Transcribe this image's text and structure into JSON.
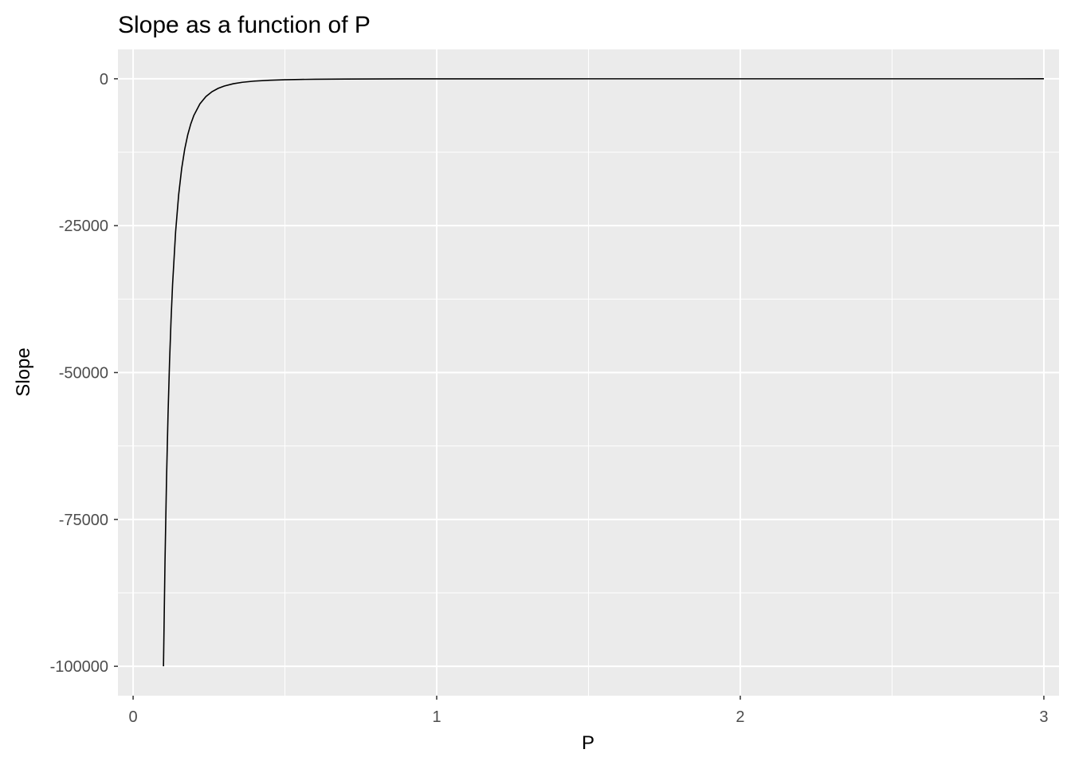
{
  "chart_data": {
    "type": "line",
    "title": "Slope as a function of P",
    "xlabel": "P",
    "ylabel": "Slope",
    "xlim": [
      -0.05,
      3.05
    ],
    "ylim": [
      -105000,
      5000
    ],
    "x_ticks": [
      0,
      1,
      2,
      3
    ],
    "x_tick_labels": [
      "0",
      "1",
      "2",
      "3"
    ],
    "x_minor_ticks": [
      0.5,
      1.5,
      2.5
    ],
    "y_ticks": [
      0,
      -25000,
      -50000,
      -75000,
      -100000
    ],
    "y_tick_labels": [
      "0",
      "-25000",
      "-50000",
      "-75000",
      "-100000"
    ],
    "y_minor_ticks": [
      -12500,
      -37500,
      -62500,
      -87500
    ],
    "grid": true,
    "panel_background": "#ebebeb",
    "grid_color": "#ffffff",
    "line_color": "#000000",
    "series": [
      {
        "x": [
          0.1,
          0.105,
          0.11,
          0.115,
          0.12,
          0.125,
          0.13,
          0.14,
          0.15,
          0.16,
          0.17,
          0.18,
          0.19,
          0.2,
          0.22,
          0.24,
          0.26,
          0.28,
          0.3,
          0.33,
          0.36,
          0.4,
          0.45,
          0.5,
          0.55,
          0.6,
          0.7,
          0.8,
          0.9,
          1.0,
          1.25,
          1.5,
          1.75,
          2.0,
          2.25,
          2.5,
          2.75,
          3.0
        ],
        "y": [
          -100000,
          -82270,
          -68301,
          -57175,
          -48225,
          -40960,
          -35013,
          -26031,
          -19753,
          -15259,
          -11973,
          -9526,
          -7674,
          -6250,
          -4269,
          -3014,
          -2188,
          -1627,
          -1235,
          -843,
          -595,
          -391,
          -244,
          -160,
          -109,
          -77,
          -42,
          -24,
          -15,
          -10,
          -4,
          -2,
          -1,
          -0.6,
          -0.4,
          -0.3,
          -0.2,
          -0.1
        ]
      }
    ]
  }
}
